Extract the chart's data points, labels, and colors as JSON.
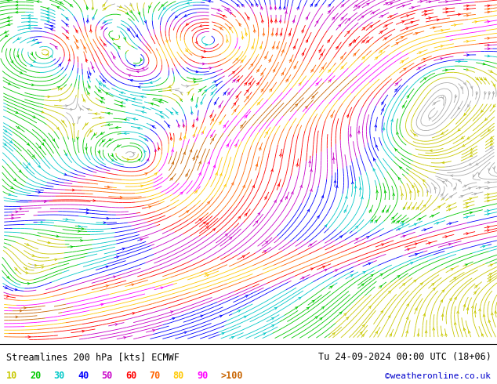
{
  "title_left": "Streamlines 200 hPa [kts] ECMWF",
  "title_right": "Tu 24-09-2024 00:00 UTC (18+06)",
  "credit": "©weatheronline.co.uk",
  "legend_values": [
    "10",
    "20",
    "30",
    "40",
    "50",
    "60",
    "70",
    "80",
    "90",
    ">100"
  ],
  "legend_colors": [
    "#c8c800",
    "#00c800",
    "#00c8c8",
    "#0000ff",
    "#c800c8",
    "#ff0000",
    "#ff6400",
    "#ffc800",
    "#ff00ff",
    "#c86400"
  ],
  "background_color": "#ffffff",
  "text_color": "#000000",
  "fig_width": 6.34,
  "fig_height": 4.9,
  "dpi": 100,
  "speed_levels": [
    0,
    10,
    20,
    30,
    40,
    50,
    60,
    70,
    80,
    90,
    100,
    200
  ],
  "colormap_colors": [
    "#aaaaaa",
    "#c8c800",
    "#00c800",
    "#00c8c8",
    "#0000ff",
    "#c800c8",
    "#ff0000",
    "#ff6400",
    "#ffc800",
    "#ff00ff",
    "#c86400",
    "#c86400"
  ]
}
